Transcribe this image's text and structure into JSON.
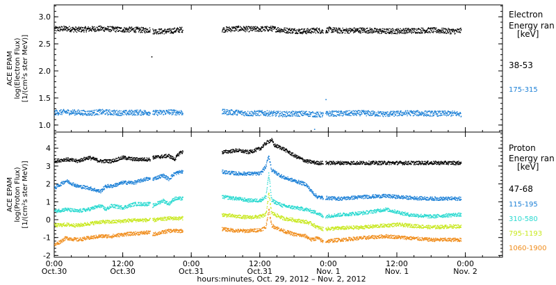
{
  "colors": {
    "black": "#000000",
    "blue": "#1a7fd6",
    "cyan": "#28d9d0",
    "yellow": "#c8e81e",
    "orange": "#f08c1a"
  },
  "chart_data": [
    {
      "type": "scatter",
      "panel": "electron",
      "ylabel": [
        "ACE EPAM",
        "log(Electron Flux)",
        "[1/(cm²s ster MeV)]"
      ],
      "ylim": [
        0.87,
        3.22
      ],
      "yticks": [
        "1.0",
        "1.5",
        "2.0",
        "2.5",
        "3.0"
      ],
      "ytick_values": [
        1.0,
        1.5,
        2.0,
        2.5,
        3.0
      ],
      "legend_title": [
        "Electron",
        "Energy ran",
        "[keV]"
      ],
      "gap_hours": [
        [
          22.5,
          29.3
        ]
      ],
      "series": [
        {
          "name": "38-53",
          "color": "#000000",
          "points": [
            [
              0,
              2.78
            ],
            [
              2,
              2.79
            ],
            [
              4,
              2.77
            ],
            [
              6,
              2.78
            ],
            [
              8,
              2.79
            ],
            [
              10,
              2.78
            ],
            [
              12,
              2.77
            ],
            [
              14,
              2.77
            ],
            [
              16,
              2.76
            ],
            [
              16.7,
              2.77
            ],
            [
              17.2,
              2.74
            ],
            [
              20,
              2.74
            ],
            [
              22,
              2.77
            ],
            [
              29.4,
              2.77
            ],
            [
              32,
              2.79
            ],
            [
              34,
              2.78
            ],
            [
              36,
              2.78
            ],
            [
              38,
              2.79
            ],
            [
              40,
              2.76
            ],
            [
              44,
              2.74
            ],
            [
              46,
              2.76
            ],
            [
              47,
              2.74
            ],
            [
              48,
              2.77
            ],
            [
              50,
              2.75
            ],
            [
              54,
              2.76
            ],
            [
              58,
              2.74
            ],
            [
              62,
              2.75
            ],
            [
              66,
              2.76
            ],
            [
              70,
              2.74
            ],
            [
              71.2,
              2.75
            ]
          ],
          "outliers": [
            [
              17.0,
              2.27
            ],
            [
              47.6,
              2.75
            ]
          ]
        },
        {
          "name": "175-315",
          "color": "#1a7fd6",
          "points": [
            [
              0,
              1.24
            ],
            [
              2,
              1.25
            ],
            [
              4,
              1.24
            ],
            [
              6,
              1.23
            ],
            [
              8,
              1.25
            ],
            [
              10,
              1.24
            ],
            [
              12,
              1.23
            ],
            [
              14,
              1.24
            ],
            [
              16,
              1.24
            ],
            [
              16.7,
              1.24
            ],
            [
              17.2,
              1.23
            ],
            [
              20,
              1.25
            ],
            [
              22,
              1.24
            ],
            [
              29.4,
              1.25
            ],
            [
              32,
              1.24
            ],
            [
              34,
              1.22
            ],
            [
              36,
              1.23
            ],
            [
              38,
              1.22
            ],
            [
              40,
              1.21
            ],
            [
              44,
              1.22
            ],
            [
              46,
              1.2
            ],
            [
              47,
              1.2
            ],
            [
              48,
              1.22
            ],
            [
              50,
              1.22
            ],
            [
              54,
              1.23
            ],
            [
              58,
              1.21
            ],
            [
              62,
              1.23
            ],
            [
              66,
              1.22
            ],
            [
              70,
              1.22
            ],
            [
              71.2,
              1.21
            ]
          ],
          "outliers": [
            [
              47.5,
              1.48
            ],
            [
              45.5,
              0.93
            ]
          ]
        }
      ]
    },
    {
      "type": "scatter",
      "panel": "proton",
      "ylabel": [
        "ACE EPAM",
        "log(Proton Flux)",
        "[1/(cm²s ster MeV)]"
      ],
      "ylim": [
        -2.1,
        4.9
      ],
      "yticks": [
        "-2",
        "-1",
        "0",
        "1",
        "2",
        "3",
        "4"
      ],
      "ytick_values": [
        -2,
        -1,
        0,
        1,
        2,
        3,
        4
      ],
      "legend_title": [
        "Proton",
        "Energy ran",
        "[keV]"
      ],
      "gap_hours": [
        [
          22.5,
          29.3
        ]
      ],
      "series": [
        {
          "name": "47-68",
          "color": "#000000",
          "points": [
            [
              0,
              3.3
            ],
            [
              2,
              3.4
            ],
            [
              4,
              3.3
            ],
            [
              6,
              3.5
            ],
            [
              8,
              3.3
            ],
            [
              10,
              3.3
            ],
            [
              12,
              3.5
            ],
            [
              14,
              3.4
            ],
            [
              16,
              3.4
            ],
            [
              16.7,
              3.4
            ],
            [
              17.2,
              3.5
            ],
            [
              20,
              3.6
            ],
            [
              21,
              3.4
            ],
            [
              22,
              3.8
            ],
            [
              29.4,
              3.8
            ],
            [
              32,
              3.9
            ],
            [
              34,
              3.8
            ],
            [
              36,
              4.0
            ],
            [
              37,
              4.3
            ],
            [
              38,
              4.5
            ],
            [
              38.4,
              4.2
            ],
            [
              40,
              4.0
            ],
            [
              42,
              3.6
            ],
            [
              44,
              3.3
            ],
            [
              46,
              3.2
            ],
            [
              47,
              3.2
            ],
            [
              48,
              3.2
            ],
            [
              52,
              3.2
            ],
            [
              56,
              3.2
            ],
            [
              60,
              3.2
            ],
            [
              64,
              3.2
            ],
            [
              68,
              3.2
            ],
            [
              71.2,
              3.2
            ]
          ]
        },
        {
          "name": "115-195",
          "color": "#1a7fd6",
          "points": [
            [
              0,
              1.8
            ],
            [
              2,
              2.2
            ],
            [
              4,
              1.9
            ],
            [
              6,
              1.8
            ],
            [
              8,
              1.6
            ],
            [
              9,
              1.9
            ],
            [
              10,
              1.9
            ],
            [
              12,
              2.1
            ],
            [
              14,
              2.1
            ],
            [
              16,
              2.3
            ],
            [
              16.7,
              2.3
            ],
            [
              17.2,
              2.3
            ],
            [
              19,
              2.5
            ],
            [
              20,
              2.3
            ],
            [
              21,
              2.6
            ],
            [
              22,
              2.7
            ],
            [
              29.4,
              2.7
            ],
            [
              32,
              2.6
            ],
            [
              34,
              2.6
            ],
            [
              36,
              2.6
            ],
            [
              37,
              3.0
            ],
            [
              37.5,
              3.6
            ],
            [
              38,
              2.8
            ],
            [
              40,
              2.4
            ],
            [
              42,
              2.2
            ],
            [
              44,
              2.0
            ],
            [
              45,
              1.6
            ],
            [
              46,
              1.3
            ],
            [
              47,
              1.25
            ],
            [
              50,
              1.2
            ],
            [
              54,
              1.3
            ],
            [
              58,
              1.35
            ],
            [
              60,
              1.3
            ],
            [
              62,
              1.25
            ],
            [
              66,
              1.2
            ],
            [
              70,
              1.2
            ],
            [
              71.2,
              1.2
            ]
          ]
        },
        {
          "name": "310-580",
          "color": "#28d9d0",
          "points": [
            [
              0,
              0.5
            ],
            [
              2,
              0.6
            ],
            [
              4,
              0.5
            ],
            [
              6,
              0.6
            ],
            [
              8,
              0.8
            ],
            [
              9,
              0.6
            ],
            [
              10,
              0.8
            ],
            [
              12,
              0.7
            ],
            [
              14,
              0.9
            ],
            [
              16,
              0.9
            ],
            [
              16.7,
              0.9
            ],
            [
              17.2,
              0.8
            ],
            [
              19,
              1.1
            ],
            [
              20,
              0.9
            ],
            [
              21,
              1.2
            ],
            [
              22,
              1.2
            ],
            [
              29.4,
              1.3
            ],
            [
              32,
              1.2
            ],
            [
              34,
              1.1
            ],
            [
              36,
              1.1
            ],
            [
              37,
              1.3
            ],
            [
              37.5,
              2.6
            ],
            [
              38,
              1.1
            ],
            [
              40,
              0.8
            ],
            [
              42,
              0.7
            ],
            [
              44,
              0.6
            ],
            [
              45,
              0.5
            ],
            [
              46,
              0.4
            ],
            [
              47,
              0.2
            ],
            [
              50,
              0.3
            ],
            [
              54,
              0.4
            ],
            [
              58,
              0.6
            ],
            [
              60,
              0.45
            ],
            [
              62,
              0.3
            ],
            [
              66,
              0.2
            ],
            [
              70,
              0.3
            ],
            [
              71.2,
              0.3
            ]
          ]
        },
        {
          "name": "795-1193",
          "color": "#c8e81e",
          "points": [
            [
              0,
              -0.3
            ],
            [
              2,
              -0.25
            ],
            [
              4,
              -0.3
            ],
            [
              6,
              -0.2
            ],
            [
              8,
              -0.1
            ],
            [
              10,
              -0.1
            ],
            [
              12,
              -0.05
            ],
            [
              14,
              0.0
            ],
            [
              16,
              0.0
            ],
            [
              16.7,
              0.0
            ],
            [
              17.2,
              0.0
            ],
            [
              20,
              0.1
            ],
            [
              22,
              0.1
            ],
            [
              29.4,
              0.3
            ],
            [
              32,
              0.2
            ],
            [
              34,
              0.15
            ],
            [
              36,
              0.2
            ],
            [
              37,
              0.3
            ],
            [
              37.5,
              1.5
            ],
            [
              38,
              0.4
            ],
            [
              40,
              0.1
            ],
            [
              42,
              0.0
            ],
            [
              44,
              -0.1
            ],
            [
              45,
              -0.2
            ],
            [
              46,
              -0.4
            ],
            [
              47,
              -0.5
            ],
            [
              50,
              -0.45
            ],
            [
              54,
              -0.4
            ],
            [
              58,
              -0.3
            ],
            [
              60,
              -0.25
            ],
            [
              62,
              -0.3
            ],
            [
              66,
              -0.4
            ],
            [
              70,
              -0.35
            ],
            [
              71.2,
              -0.35
            ]
          ]
        },
        {
          "name": "1060-1900",
          "color": "#f08c1a",
          "points": [
            [
              0,
              -1.4
            ],
            [
              2,
              -1.0
            ],
            [
              4,
              -1.1
            ],
            [
              6,
              -1.0
            ],
            [
              8,
              -0.9
            ],
            [
              10,
              -0.9
            ],
            [
              12,
              -0.8
            ],
            [
              14,
              -0.75
            ],
            [
              16,
              -0.7
            ],
            [
              16.7,
              -0.7
            ],
            [
              17.2,
              -0.8
            ],
            [
              20,
              -0.6
            ],
            [
              22,
              -0.6
            ],
            [
              29.4,
              -0.5
            ],
            [
              32,
              -0.6
            ],
            [
              34,
              -0.6
            ],
            [
              36,
              -0.55
            ],
            [
              37,
              -0.4
            ],
            [
              37.5,
              0.6
            ],
            [
              38,
              -0.3
            ],
            [
              40,
              -0.6
            ],
            [
              42,
              -0.8
            ],
            [
              44,
              -0.9
            ],
            [
              45,
              -1.1
            ],
            [
              46,
              -1.0
            ],
            [
              47,
              -1.2
            ],
            [
              50,
              -1.1
            ],
            [
              54,
              -1.0
            ],
            [
              58,
              -0.9
            ],
            [
              60,
              -0.95
            ],
            [
              62,
              -1.0
            ],
            [
              66,
              -1.1
            ],
            [
              70,
              -1.1
            ],
            [
              71.2,
              -1.1
            ]
          ]
        }
      ]
    }
  ],
  "x_axis": {
    "xlim": [
      0,
      78.5
    ],
    "ticks_major": [
      0,
      12,
      24,
      36,
      48,
      60,
      72
    ],
    "tick_labels_time": [
      "0:00",
      "12:00",
      "0:00",
      "12:00",
      "0:00",
      "12:00",
      "0:00"
    ],
    "tick_labels_date": [
      "Oct.30",
      "Oct.30",
      "Oct.31",
      "Oct.31",
      "Nov. 1",
      "Nov. 1",
      "Nov. 2"
    ],
    "xlabel": "hours:minutes, Oct. 29, 2012 – Nov. 2, 2012"
  }
}
